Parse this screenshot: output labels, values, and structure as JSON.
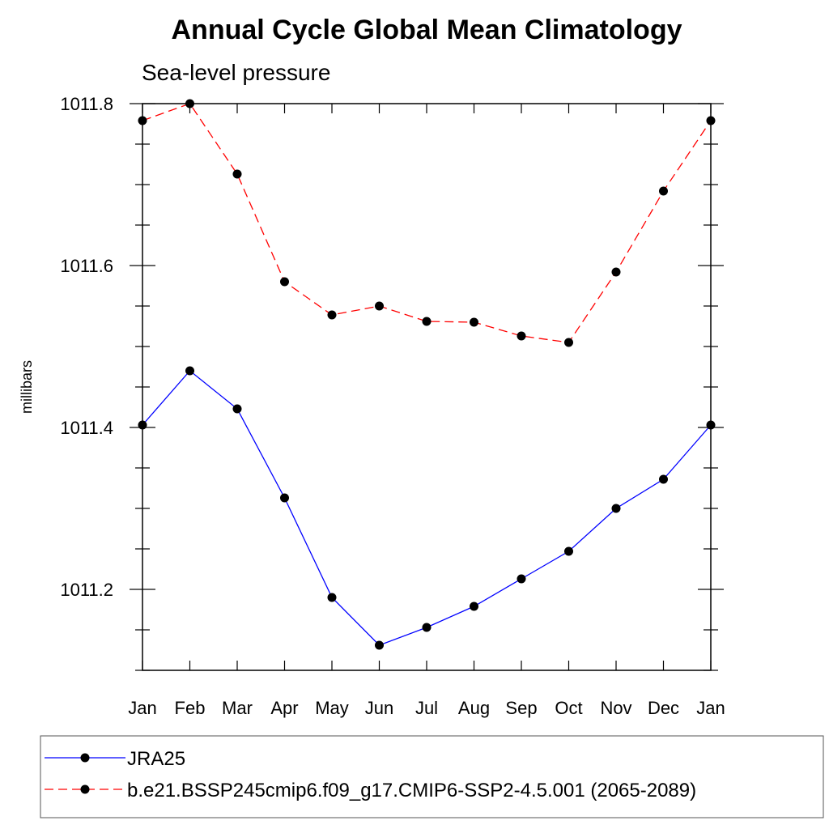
{
  "chart_data": {
    "type": "line",
    "title": "Annual Cycle Global Mean Climatology",
    "subtitle": "Sea-level pressure",
    "ylabel": "millibars",
    "xlabel": "",
    "categories": [
      "Jan",
      "Feb",
      "Mar",
      "Apr",
      "May",
      "Jun",
      "Jul",
      "Aug",
      "Sep",
      "Oct",
      "Nov",
      "Dec",
      "Jan"
    ],
    "ylim": [
      1011.1,
      1011.8
    ],
    "yticks": [
      "1011.2",
      "1011.4",
      "1011.6",
      "1011.8"
    ],
    "legend_position": "bottom",
    "series": [
      {
        "name": "JRA25",
        "color": "#0000ff",
        "line_style": "solid",
        "values": [
          1011.403,
          1011.47,
          1011.423,
          1011.313,
          1011.19,
          1011.131,
          1011.153,
          1011.179,
          1011.213,
          1011.247,
          1011.3,
          1011.336,
          1011.403
        ]
      },
      {
        "name": "b.e21.BSSP245cmip6.f09_g17.CMIP6-SSP2-4.5.001 (2065-2089)",
        "color": "#ff0000",
        "line_style": "dashed",
        "values": [
          1011.779,
          1011.8,
          1011.713,
          1011.58,
          1011.539,
          1011.55,
          1011.531,
          1011.53,
          1011.513,
          1011.505,
          1011.592,
          1011.692,
          1011.779
        ]
      }
    ]
  }
}
